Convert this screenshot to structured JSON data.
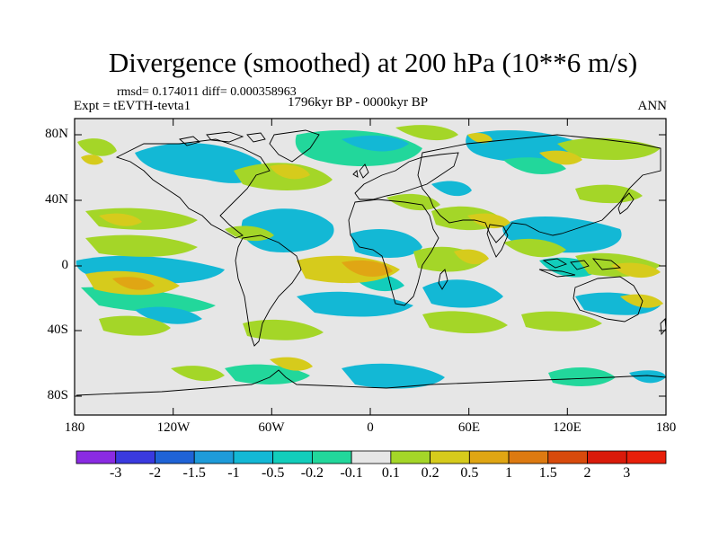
{
  "header": {
    "title": "Divergence (smoothed) at 200 hPa (10**6 m/s)",
    "stats": "rmsd= 0.174011 diff= 0.000358963",
    "experiment": "Expt = tEVTH-tevta1",
    "period": "1796kyr BP - 0000kyr BP",
    "season": "ANN"
  },
  "axes": {
    "lat_labels": [
      "80N",
      "40N",
      "0",
      "40S",
      "80S"
    ],
    "lon_labels": [
      "180",
      "120W",
      "60W",
      "0",
      "60E",
      "120E",
      "180"
    ]
  },
  "colorbar": {
    "labels": [
      "-3",
      "-2",
      "-1.5",
      "-1",
      "-0.5",
      "-0.2",
      "-0.1",
      "0.1",
      "0.2",
      "0.5",
      "1",
      "1.5",
      "2",
      "3"
    ],
    "colors": [
      "#8a2be2",
      "#3a3adf",
      "#1f63d6",
      "#1e9bd9",
      "#13b8d5",
      "#12cdbb",
      "#22d79b",
      "#e6e6e6",
      "#a4d628",
      "#d6cb1c",
      "#e0a614",
      "#dd7a11",
      "#d84a0c",
      "#d91a0a",
      "#e81f0a"
    ]
  },
  "colors": {
    "land_outline": "#000000",
    "ocean_background": "#e6e6e6"
  }
}
